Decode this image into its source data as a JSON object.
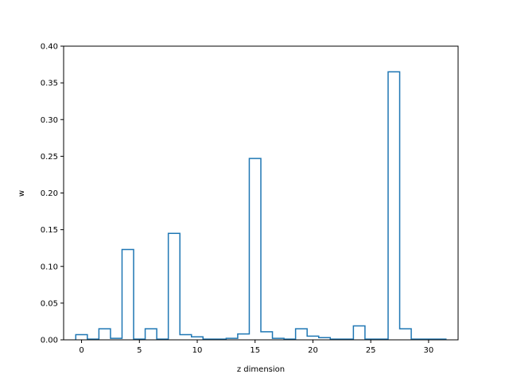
{
  "chart_data": {
    "type": "bar",
    "style": "step",
    "title": "",
    "xlabel": "z dimension",
    "ylabel": "w",
    "xlim": [
      -1.55,
      32.55
    ],
    "ylim": [
      0,
      0.4
    ],
    "grid": false,
    "x": [
      0,
      1,
      2,
      3,
      4,
      5,
      6,
      7,
      8,
      9,
      10,
      11,
      12,
      13,
      14,
      15,
      16,
      17,
      18,
      19,
      20,
      21,
      22,
      23,
      24,
      25,
      26,
      27,
      28,
      29,
      30,
      31
    ],
    "values": [
      0.007,
      0.001,
      0.015,
      0.002,
      0.123,
      0.001,
      0.015,
      0.001,
      0.145,
      0.007,
      0.004,
      0.001,
      0.001,
      0.002,
      0.008,
      0.247,
      0.011,
      0.002,
      0.001,
      0.015,
      0.005,
      0.003,
      0.001,
      0.001,
      0.019,
      0.001,
      0.001,
      0.365,
      0.015,
      0.001,
      0.001,
      0.001
    ],
    "xticks": [
      "0",
      "5",
      "10",
      "15",
      "20",
      "25",
      "30"
    ],
    "yticks": [
      "0.00",
      "0.05",
      "0.10",
      "0.15",
      "0.20",
      "0.25",
      "0.30",
      "0.35",
      "0.40"
    ],
    "color": "#1f77b4"
  }
}
